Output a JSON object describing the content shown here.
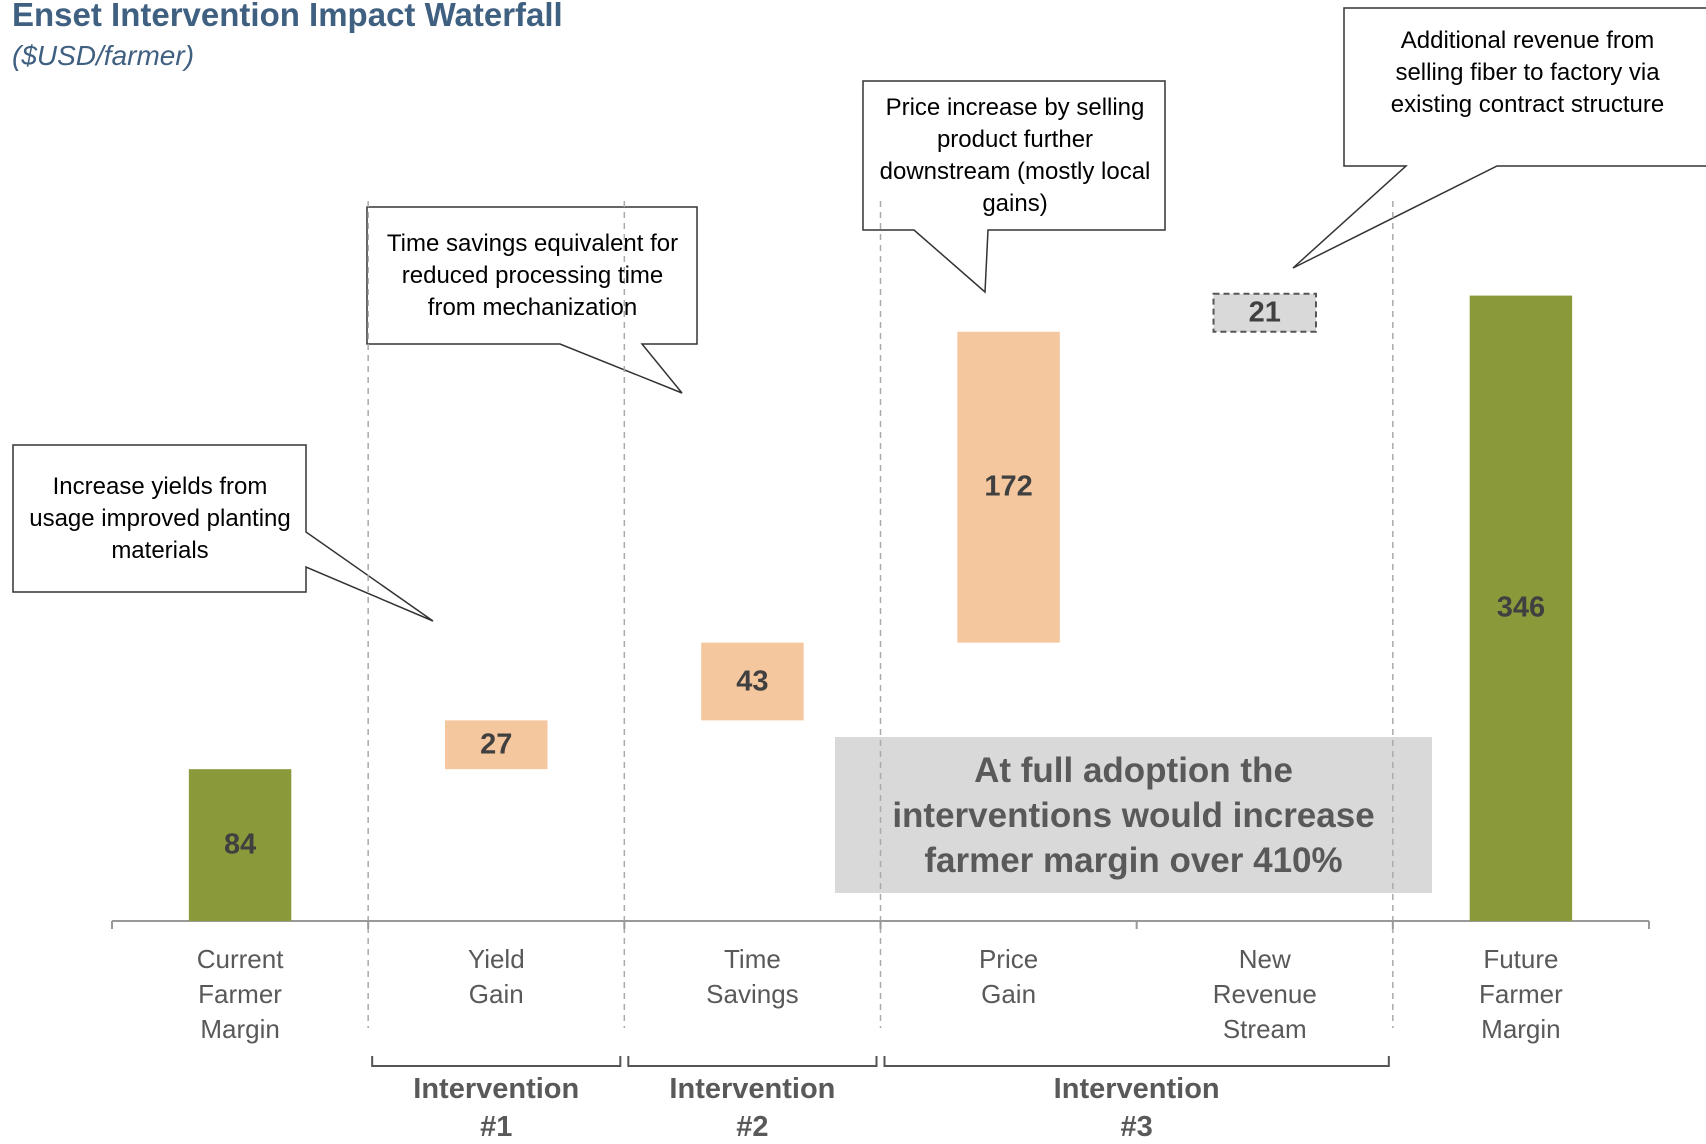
{
  "chart_data": {
    "type": "waterfall",
    "title": "Enset Intervention Impact Waterfall",
    "subtitle": "($USD/farmer)",
    "categories": [
      "Current Farmer Margin",
      "Yield Gain",
      "Time Savings",
      "Price Gain",
      "New Revenue Stream",
      "Future Farmer Margin"
    ],
    "values": [
      84,
      27,
      43,
      172,
      21,
      346
    ],
    "measures": [
      "total",
      "relative",
      "relative",
      "relative",
      "relative",
      "total"
    ],
    "colors": [
      "#8a9a3b",
      "#f5c79e",
      "#f5c79e",
      "#f5c79e",
      "#d9d9d9",
      "#8a9a3b"
    ],
    "dashed": [
      false,
      false,
      false,
      false,
      true,
      false
    ],
    "ylim": [
      0,
      400
    ],
    "groups": [
      {
        "label": "Intervention #1",
        "categories": [
          1
        ]
      },
      {
        "label": "Intervention #2",
        "categories": [
          2
        ]
      },
      {
        "label": "Intervention #3",
        "categories": [
          3,
          4
        ]
      }
    ],
    "annotations": [
      "Increase yields from usage improved planting materials",
      "Time savings equivalent for reduced processing time from mechanization",
      "Price increase by selling product further downstream (mostly local gains)",
      "Additional revenue from selling fiber to factory via existing contract structure"
    ],
    "highlight": "At full adoption the interventions would increase farmer margin over 410%"
  }
}
